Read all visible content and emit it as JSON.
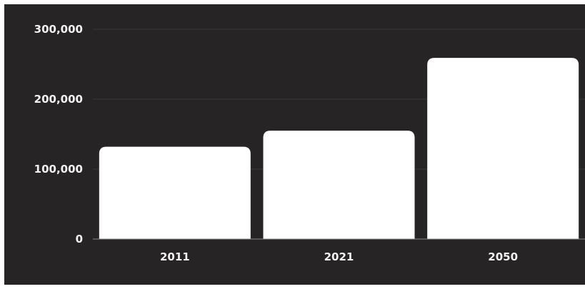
{
  "colors": {
    "background": "#272425",
    "bar": "#ffffff",
    "text": "#f2f2f2",
    "grid": "#3a3738"
  },
  "chart_data": {
    "type": "bar",
    "title": "",
    "xlabel": "",
    "ylabel": "",
    "categories": [
      "2011",
      "2021",
      "2050"
    ],
    "values": [
      132000,
      155000,
      259000
    ],
    "ylim": [
      0,
      300000
    ],
    "yticks": [
      0,
      100000,
      200000,
      300000
    ],
    "ytick_labels": [
      "0",
      "100,000",
      "200,000",
      "300,000"
    ],
    "grid": true,
    "legend": "none"
  }
}
